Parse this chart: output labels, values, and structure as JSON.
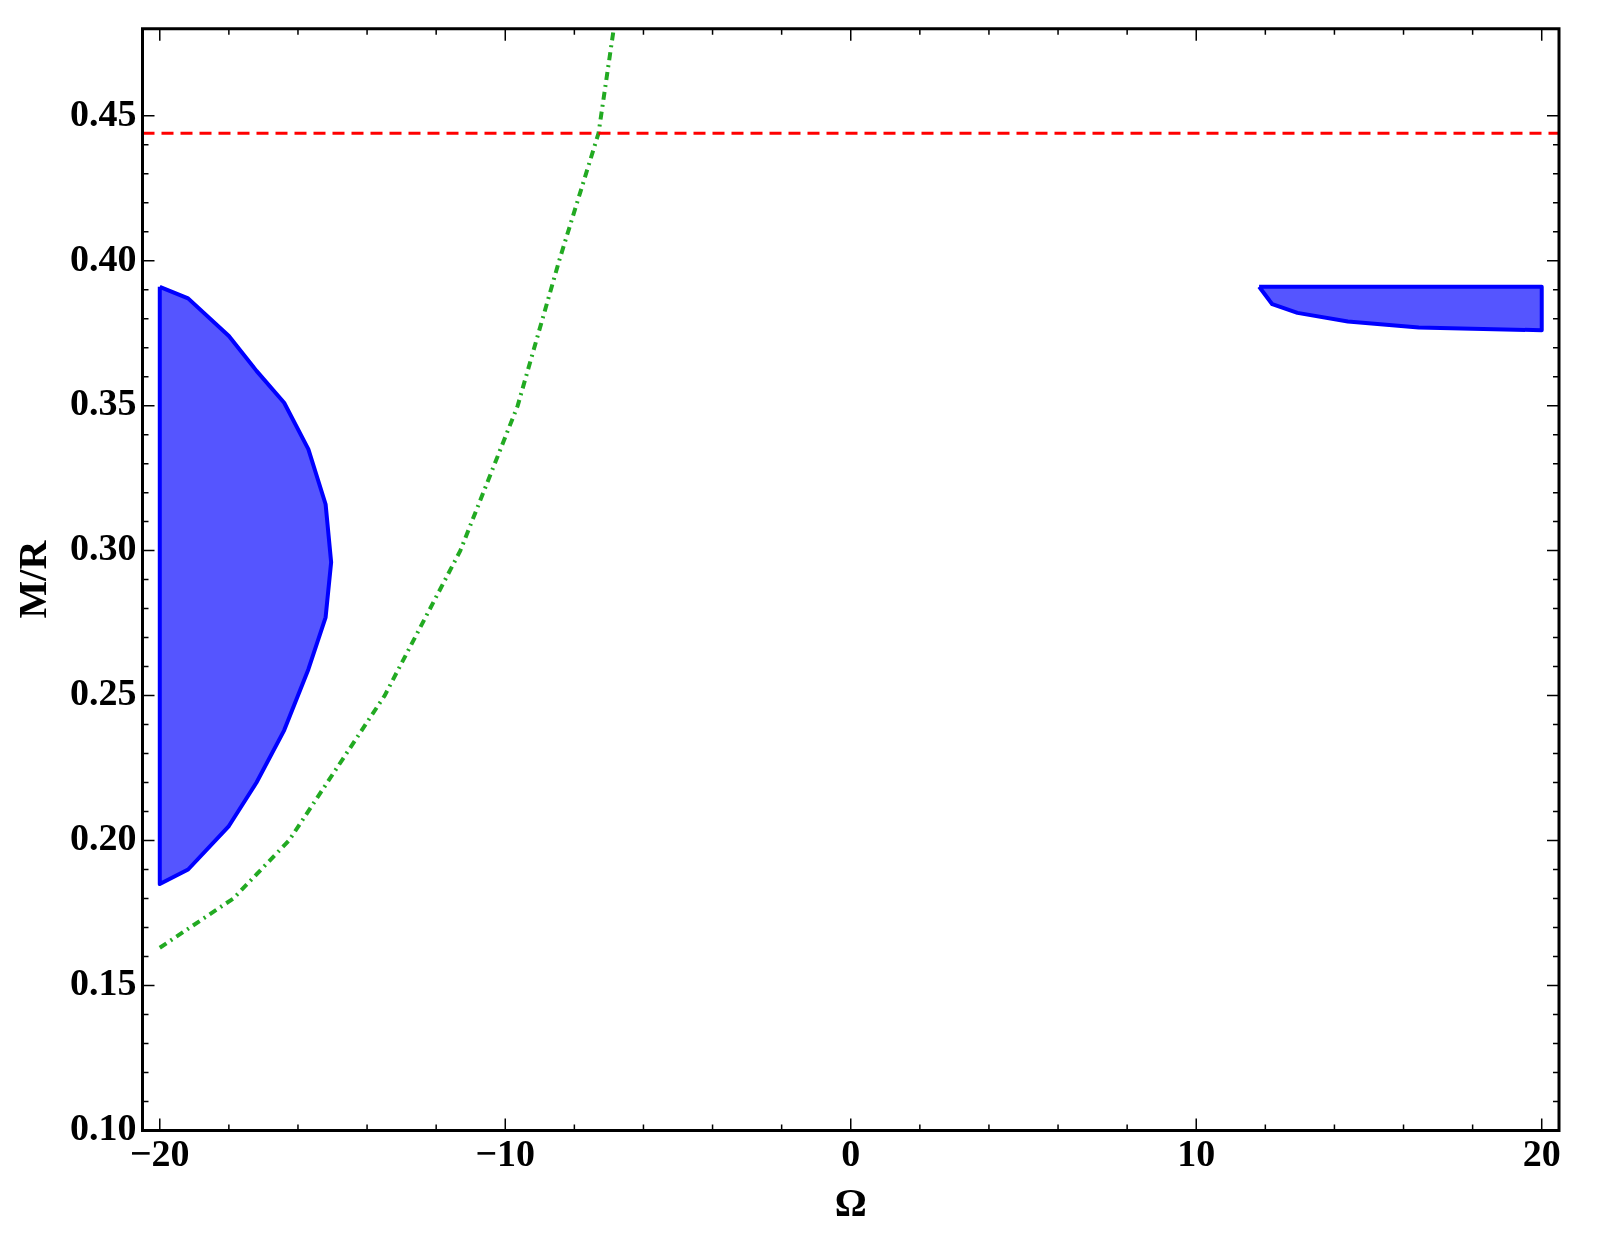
{
  "chart_data": {
    "type": "area",
    "xlabel": "Ω",
    "ylabel": "M/R",
    "xlim": [
      -20.5,
      20.5
    ],
    "ylim": [
      0.1,
      0.48
    ],
    "xticks": [
      -20,
      -10,
      0,
      10,
      20
    ],
    "yticks": [
      {
        "value": 0.1,
        "label": "0.10"
      },
      {
        "value": 0.15,
        "label": "0.15"
      },
      {
        "value": 0.2,
        "label": "0.20"
      },
      {
        "value": 0.25,
        "label": "0.25"
      },
      {
        "value": 0.3,
        "label": "0.30"
      },
      {
        "value": 0.35,
        "label": "0.35"
      },
      {
        "value": 0.4,
        "label": "0.40"
      },
      {
        "value": 0.45,
        "label": "0.45"
      }
    ],
    "grid": false,
    "legend": false,
    "series": [
      {
        "color": "#5555ff",
        "x": [
          -20,
          -19.18,
          -18,
          -17.2,
          -16.4,
          -15.7,
          -15.2,
          -15.04,
          -15.2,
          -15.7,
          -16.4,
          -17.2,
          -18,
          -19.18,
          -20,
          -20
        ],
        "values": [
          0.391,
          0.387,
          0.374,
          0.362,
          0.351,
          0.335,
          0.316,
          0.296,
          0.277,
          0.259,
          0.238,
          0.22,
          0.205,
          0.19,
          0.185,
          0.391
        ]
      },
      {
        "color": "#5555ff",
        "x": [
          11.82,
          20,
          20,
          16.44,
          14.39,
          12.93,
          12.2,
          11.82
        ],
        "values": [
          0.391,
          0.391,
          0.376,
          0.377,
          0.379,
          0.382,
          0.385,
          0.391
        ]
      },
      {
        "type": "line",
        "color": "#22aa22",
        "line_style": "dotted",
        "x": [
          -20,
          -17.87,
          -16.26,
          -13.49,
          -11.3,
          -9.64,
          -8.44,
          -7.3,
          -6.86
        ],
        "values": [
          0.163,
          0.18,
          0.2,
          0.25,
          0.3,
          0.35,
          0.4,
          0.444,
          0.48
        ]
      }
    ],
    "ref_lines": [
      {
        "axis": "y",
        "value": 0.444,
        "color": "#ff0000",
        "line_style": "dashed"
      }
    ]
  }
}
